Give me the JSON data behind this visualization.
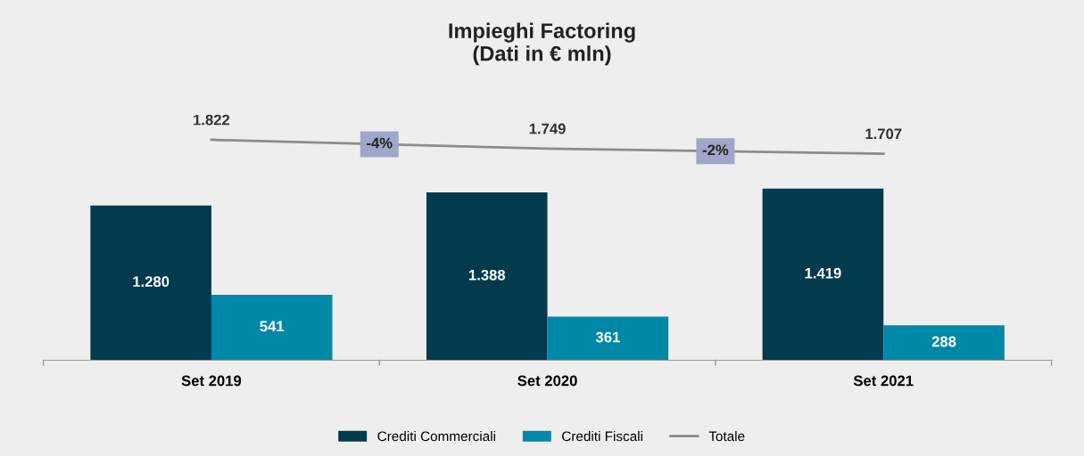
{
  "chart_data": {
    "type": "bar",
    "title": "Impieghi Factoring\n(Dati in € mln)",
    "categories": [
      "Set 2019",
      "Set 2020",
      "Set 2021"
    ],
    "series": [
      {
        "name": "Crediti Commerciali",
        "color": "#033a4d",
        "values": [
          1280,
          1388,
          1419
        ],
        "value_labels": [
          "1.280",
          "1.388",
          "1.419"
        ]
      },
      {
        "name": "Crediti Fiscali",
        "color": "#0088a8",
        "values": [
          541,
          361,
          288
        ],
        "value_labels": [
          "541",
          "361",
          "288"
        ]
      },
      {
        "name": "Totale",
        "type": "line",
        "color": "#8c8c8c",
        "values": [
          1822,
          1749,
          1707
        ],
        "value_labels": [
          "1.822",
          "1.749",
          "1.707"
        ]
      }
    ],
    "annotations": [
      "-4%",
      "-2%"
    ],
    "grid": false,
    "legend": "bottom",
    "marker": "none"
  }
}
